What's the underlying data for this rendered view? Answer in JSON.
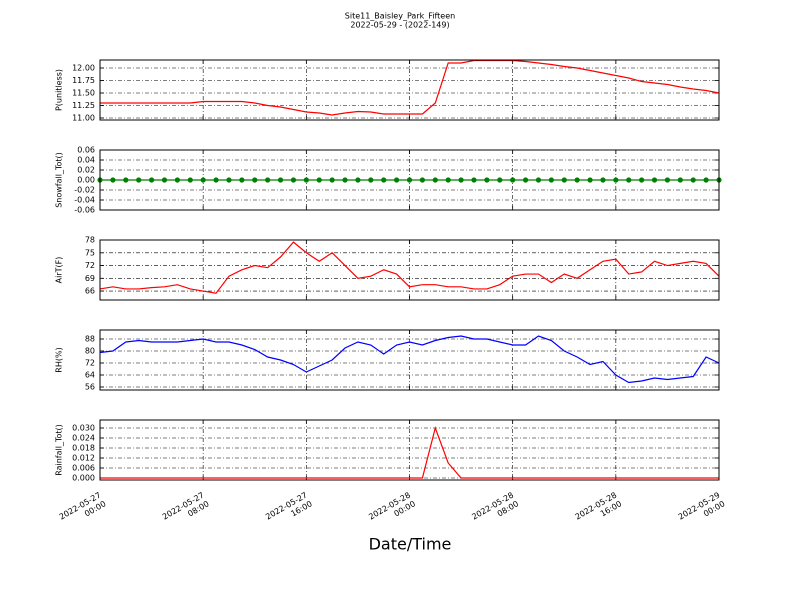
{
  "title": "Site11_Baisley_Park_Fifteen",
  "subtitle": "2022-05-29 - (2022-149)",
  "xlabel": "Date/Time",
  "chart_data": [
    {
      "type": "line",
      "ylabel": "P(unitless)",
      "color": "#ff0000",
      "grid": true,
      "ylim": [
        10.96,
        12.16
      ],
      "yticks": [
        {
          "value": 11,
          "label": "11.00"
        },
        11.25,
        {
          "value": 11.5,
          "label": "11.50"
        },
        11.75,
        {
          "value": 12,
          "label": "12.00"
        }
      ],
      "x": [
        "2022-05-27 00:00",
        "2022-05-27 01:00",
        "2022-05-27 02:00",
        "2022-05-27 03:00",
        "2022-05-27 04:00",
        "2022-05-27 05:00",
        "2022-05-27 06:00",
        "2022-05-27 07:00",
        "2022-05-27 08:00",
        "2022-05-27 09:00",
        "2022-05-27 10:00",
        "2022-05-27 11:00",
        "2022-05-27 12:00",
        "2022-05-27 13:00",
        "2022-05-27 14:00",
        "2022-05-27 15:00",
        "2022-05-27 16:00",
        "2022-05-27 17:00",
        "2022-05-27 18:00",
        "2022-05-27 19:00",
        "2022-05-27 20:00",
        "2022-05-27 21:00",
        "2022-05-27 22:00",
        "2022-05-27 23:00",
        "2022-05-28 00:00",
        "2022-05-28 01:00",
        "2022-05-28 02:00",
        "2022-05-28 03:00",
        "2022-05-28 04:00",
        "2022-05-28 05:00",
        "2022-05-28 06:00",
        "2022-05-28 07:00",
        "2022-05-28 08:00",
        "2022-05-28 09:00",
        "2022-05-28 10:00",
        "2022-05-28 11:00",
        "2022-05-28 12:00",
        "2022-05-28 13:00",
        "2022-05-28 14:00",
        "2022-05-28 15:00",
        "2022-05-28 16:00",
        "2022-05-28 17:00",
        "2022-05-28 18:00",
        "2022-05-28 19:00",
        "2022-05-28 20:00",
        "2022-05-28 21:00",
        "2022-05-28 22:00",
        "2022-05-28 23:00",
        "2022-05-29 00:00"
      ],
      "values": [
        11.3,
        11.3,
        11.3,
        11.3,
        11.3,
        11.3,
        11.3,
        11.3,
        11.33,
        11.33,
        11.33,
        11.33,
        11.3,
        11.25,
        11.22,
        11.17,
        11.12,
        11.1,
        11.06,
        11.1,
        11.13,
        11.12,
        11.08,
        11.08,
        11.08,
        11.08,
        11.3,
        12.1,
        12.1,
        12.15,
        12.15,
        12.15,
        12.15,
        12.13,
        12.1,
        12.07,
        12.03,
        12.0,
        11.95,
        11.9,
        11.85,
        11.8,
        11.73,
        11.7,
        11.67,
        11.62,
        11.58,
        11.55,
        11.5
      ]
    },
    {
      "type": "line",
      "ylabel": "Snowfall_Tot()",
      "color": "#008000",
      "marker": true,
      "grid": true,
      "ylim": [
        -0.06,
        0.06
      ],
      "yticks": [
        -0.06,
        -0.04,
        -0.02,
        {
          "value": 0,
          "label": "0.00"
        },
        0.02,
        0.04,
        0.06
      ],
      "x": [
        "2022-05-27 00:00",
        "2022-05-27 01:00",
        "2022-05-27 02:00",
        "2022-05-27 03:00",
        "2022-05-27 04:00",
        "2022-05-27 05:00",
        "2022-05-27 06:00",
        "2022-05-27 07:00",
        "2022-05-27 08:00",
        "2022-05-27 09:00",
        "2022-05-27 10:00",
        "2022-05-27 11:00",
        "2022-05-27 12:00",
        "2022-05-27 13:00",
        "2022-05-27 14:00",
        "2022-05-27 15:00",
        "2022-05-27 16:00",
        "2022-05-27 17:00",
        "2022-05-27 18:00",
        "2022-05-27 19:00",
        "2022-05-27 20:00",
        "2022-05-27 21:00",
        "2022-05-27 22:00",
        "2022-05-27 23:00",
        "2022-05-28 00:00",
        "2022-05-28 01:00",
        "2022-05-28 02:00",
        "2022-05-28 03:00",
        "2022-05-28 04:00",
        "2022-05-28 05:00",
        "2022-05-28 06:00",
        "2022-05-28 07:00",
        "2022-05-28 08:00",
        "2022-05-28 09:00",
        "2022-05-28 10:00",
        "2022-05-28 11:00",
        "2022-05-28 12:00",
        "2022-05-28 13:00",
        "2022-05-28 14:00",
        "2022-05-28 15:00",
        "2022-05-28 16:00",
        "2022-05-28 17:00",
        "2022-05-28 18:00",
        "2022-05-28 19:00",
        "2022-05-28 20:00",
        "2022-05-28 21:00",
        "2022-05-28 22:00",
        "2022-05-28 23:00",
        "2022-05-29 00:00"
      ],
      "values": [
        0,
        0,
        0,
        0,
        0,
        0,
        0,
        0,
        0,
        0,
        0,
        0,
        0,
        0,
        0,
        0,
        0,
        0,
        0,
        0,
        0,
        0,
        0,
        0,
        0,
        0,
        0,
        0,
        0,
        0,
        0,
        0,
        0,
        0,
        0,
        0,
        0,
        0,
        0,
        0,
        0,
        0,
        0,
        0,
        0,
        0,
        0,
        0,
        0
      ]
    },
    {
      "type": "line",
      "ylabel": "AirT(F)",
      "color": "#ff0000",
      "grid": true,
      "ylim": [
        63.9,
        78
      ],
      "yticks": [
        66,
        69,
        72,
        75,
        78
      ],
      "x": [
        "2022-05-27 00:00",
        "2022-05-27 01:00",
        "2022-05-27 02:00",
        "2022-05-27 03:00",
        "2022-05-27 04:00",
        "2022-05-27 05:00",
        "2022-05-27 06:00",
        "2022-05-27 07:00",
        "2022-05-27 08:00",
        "2022-05-27 09:00",
        "2022-05-27 10:00",
        "2022-05-27 11:00",
        "2022-05-27 12:00",
        "2022-05-27 13:00",
        "2022-05-27 14:00",
        "2022-05-27 15:00",
        "2022-05-27 16:00",
        "2022-05-27 17:00",
        "2022-05-27 18:00",
        "2022-05-27 19:00",
        "2022-05-27 20:00",
        "2022-05-27 21:00",
        "2022-05-27 22:00",
        "2022-05-27 23:00",
        "2022-05-28 00:00",
        "2022-05-28 01:00",
        "2022-05-28 02:00",
        "2022-05-28 03:00",
        "2022-05-28 04:00",
        "2022-05-28 05:00",
        "2022-05-28 06:00",
        "2022-05-28 07:00",
        "2022-05-28 08:00",
        "2022-05-28 09:00",
        "2022-05-28 10:00",
        "2022-05-28 11:00",
        "2022-05-28 12:00",
        "2022-05-28 13:00",
        "2022-05-28 14:00",
        "2022-05-28 15:00",
        "2022-05-28 16:00",
        "2022-05-28 17:00",
        "2022-05-28 18:00",
        "2022-05-28 19:00",
        "2022-05-28 20:00",
        "2022-05-28 21:00",
        "2022-05-28 22:00",
        "2022-05-28 23:00",
        "2022-05-29 00:00"
      ],
      "values": [
        66.5,
        67,
        66.5,
        66.5,
        66.8,
        67,
        67.5,
        66.5,
        66,
        65.5,
        69.5,
        71,
        72,
        71.5,
        74,
        77.5,
        75,
        73,
        75,
        72,
        69,
        69.5,
        71,
        70,
        67,
        67.5,
        67.5,
        67,
        67,
        66.5,
        66.5,
        67.5,
        69.5,
        70,
        70,
        68,
        70,
        69,
        71,
        73,
        73.5,
        70,
        70.5,
        73,
        72,
        72.5,
        73,
        72.5,
        69.5
      ]
    },
    {
      "type": "line",
      "ylabel": "RH(%)",
      "color": "#0000ff",
      "grid": true,
      "ylim": [
        54,
        94
      ],
      "yticks": [
        56,
        64,
        72,
        80,
        88
      ],
      "x": [
        "2022-05-27 00:00",
        "2022-05-27 01:00",
        "2022-05-27 02:00",
        "2022-05-27 03:00",
        "2022-05-27 04:00",
        "2022-05-27 05:00",
        "2022-05-27 06:00",
        "2022-05-27 07:00",
        "2022-05-27 08:00",
        "2022-05-27 09:00",
        "2022-05-27 10:00",
        "2022-05-27 11:00",
        "2022-05-27 12:00",
        "2022-05-27 13:00",
        "2022-05-27 14:00",
        "2022-05-27 15:00",
        "2022-05-27 16:00",
        "2022-05-27 17:00",
        "2022-05-27 18:00",
        "2022-05-27 19:00",
        "2022-05-27 20:00",
        "2022-05-27 21:00",
        "2022-05-27 22:00",
        "2022-05-27 23:00",
        "2022-05-28 00:00",
        "2022-05-28 01:00",
        "2022-05-28 02:00",
        "2022-05-28 03:00",
        "2022-05-28 04:00",
        "2022-05-28 05:00",
        "2022-05-28 06:00",
        "2022-05-28 07:00",
        "2022-05-28 08:00",
        "2022-05-28 09:00",
        "2022-05-28 10:00",
        "2022-05-28 11:00",
        "2022-05-28 12:00",
        "2022-05-28 13:00",
        "2022-05-28 14:00",
        "2022-05-28 15:00",
        "2022-05-28 16:00",
        "2022-05-28 17:00",
        "2022-05-28 18:00",
        "2022-05-28 19:00",
        "2022-05-28 20:00",
        "2022-05-28 21:00",
        "2022-05-28 22:00",
        "2022-05-28 23:00",
        "2022-05-29 00:00"
      ],
      "values": [
        79,
        80,
        86,
        87,
        86,
        86,
        86,
        87,
        88,
        86,
        86,
        84,
        81,
        76,
        74,
        71,
        66,
        70,
        74,
        82,
        86,
        84,
        78,
        84,
        86,
        84,
        87,
        89,
        90,
        88,
        88,
        86,
        84,
        84,
        90,
        87,
        80,
        76,
        71,
        73,
        64,
        59,
        60,
        62,
        61,
        62,
        63,
        76,
        72
      ]
    },
    {
      "type": "line",
      "ylabel": "Rainfall_Tot()",
      "color": "#ff0000",
      "grid": true,
      "ylim": [
        -0.0012,
        0.0348
      ],
      "yticks": [
        {
          "value": 0,
          "label": "0.000"
        },
        0.006,
        0.012,
        0.018,
        0.024,
        {
          "value": 0.03,
          "label": "0.030"
        }
      ],
      "xlim": [
        "2022-05-27 00:00",
        "2022-05-29 00:00"
      ],
      "xticks": [
        "2022-05-27 00:00",
        "2022-05-27 08:00",
        "2022-05-27 16:00",
        "2022-05-28 00:00",
        "2022-05-28 08:00",
        "2022-05-28 16:00",
        "2022-05-29 00:00"
      ],
      "x": [
        "2022-05-27 00:00",
        "2022-05-27 01:00",
        "2022-05-27 02:00",
        "2022-05-27 03:00",
        "2022-05-27 04:00",
        "2022-05-27 05:00",
        "2022-05-27 06:00",
        "2022-05-27 07:00",
        "2022-05-27 08:00",
        "2022-05-27 09:00",
        "2022-05-27 10:00",
        "2022-05-27 11:00",
        "2022-05-27 12:00",
        "2022-05-27 13:00",
        "2022-05-27 14:00",
        "2022-05-27 15:00",
        "2022-05-27 16:00",
        "2022-05-27 17:00",
        "2022-05-27 18:00",
        "2022-05-27 19:00",
        "2022-05-27 20:00",
        "2022-05-27 21:00",
        "2022-05-27 22:00",
        "2022-05-27 23:00",
        "2022-05-28 00:00",
        "2022-05-28 01:00",
        "2022-05-28 02:00",
        "2022-05-28 03:00",
        "2022-05-28 04:00",
        "2022-05-28 05:00",
        "2022-05-28 06:00",
        "2022-05-28 07:00",
        "2022-05-28 08:00",
        "2022-05-28 09:00",
        "2022-05-28 10:00",
        "2022-05-28 11:00",
        "2022-05-28 12:00",
        "2022-05-28 13:00",
        "2022-05-28 14:00",
        "2022-05-28 15:00",
        "2022-05-28 16:00",
        "2022-05-28 17:00",
        "2022-05-28 18:00",
        "2022-05-28 19:00",
        "2022-05-28 20:00",
        "2022-05-28 21:00",
        "2022-05-28 22:00",
        "2022-05-28 23:00",
        "2022-05-29 00:00"
      ],
      "values": [
        0,
        0,
        0,
        0,
        0,
        0,
        0,
        0,
        0,
        0,
        0,
        0,
        0,
        0,
        0,
        0,
        0,
        0,
        0,
        0,
        0,
        0,
        0,
        0,
        0,
        0,
        0.03,
        0.009,
        0,
        0,
        0,
        0,
        0,
        0,
        0,
        0,
        0,
        0,
        0,
        0,
        0,
        0,
        0,
        0,
        0,
        0,
        0,
        0,
        0
      ]
    }
  ]
}
